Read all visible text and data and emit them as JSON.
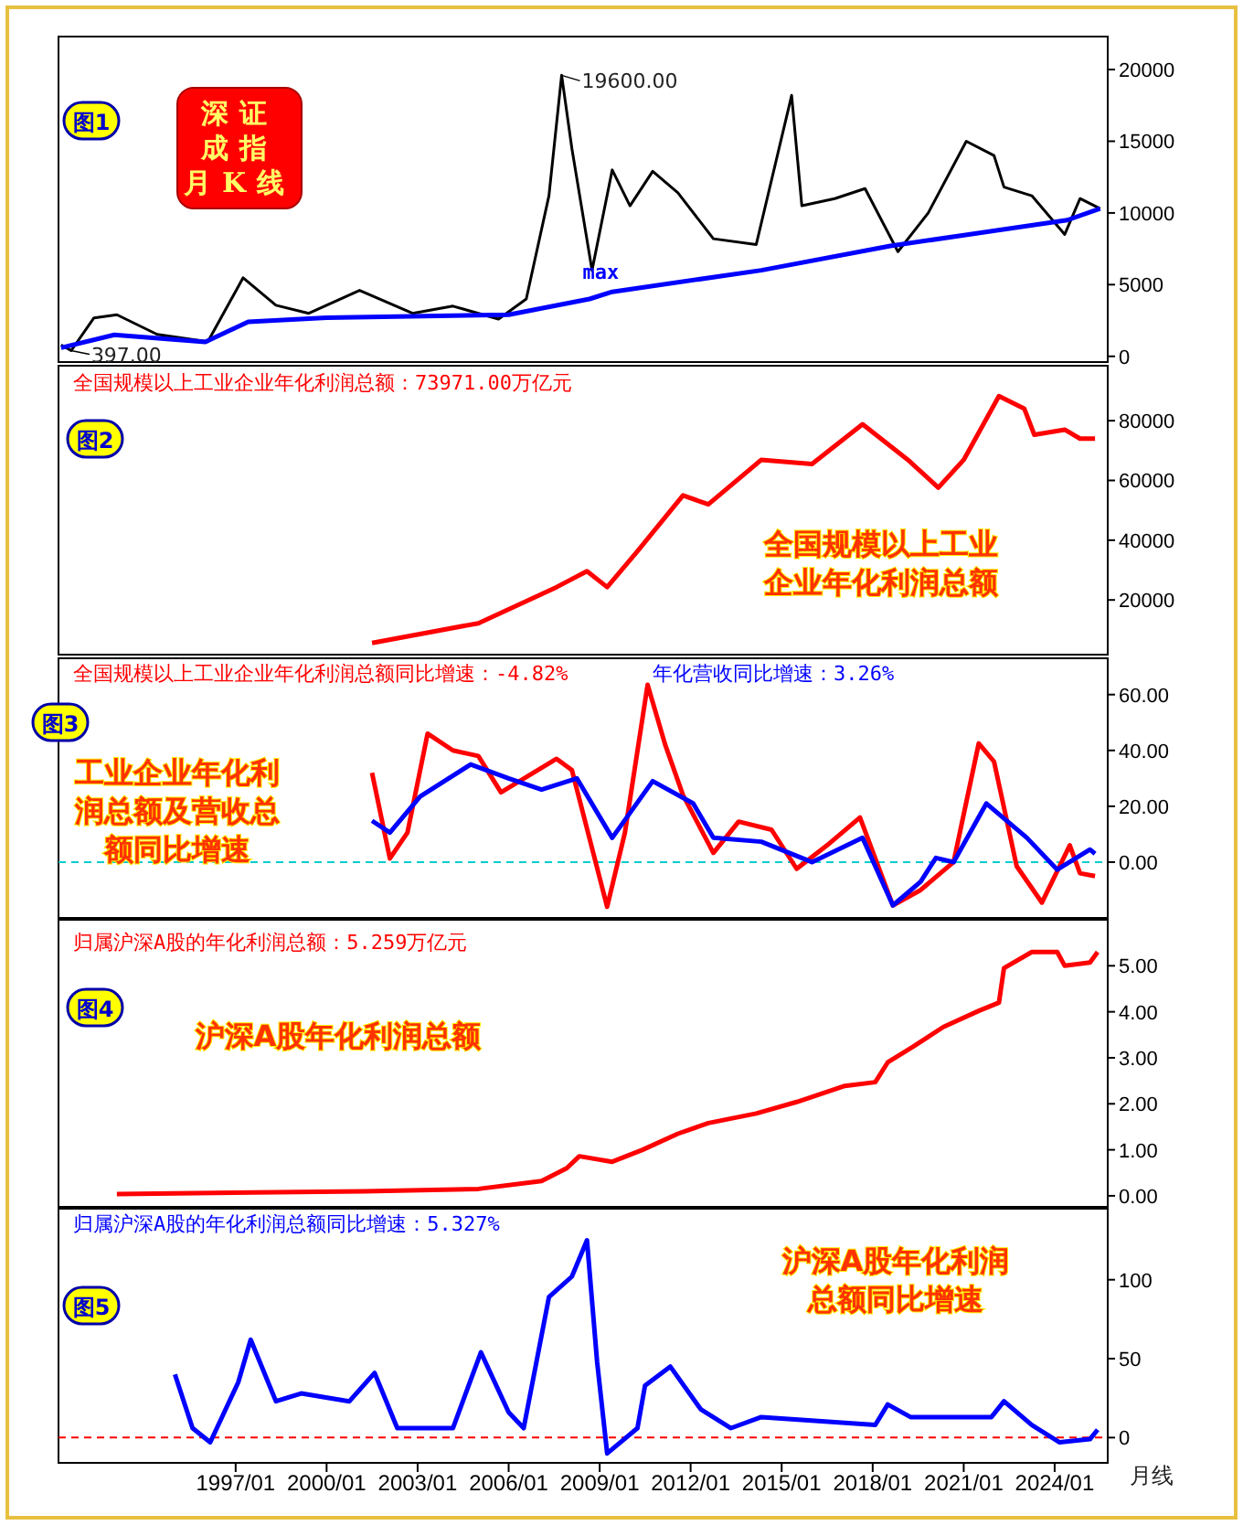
{
  "chart_data": [
    {
      "type": "line",
      "title": "深证成指月K线",
      "xlim": [
        "1991-03",
        "2025-10"
      ],
      "ylim": [
        -400,
        22300
      ],
      "yticks": [
        0,
        5000,
        10000,
        15000,
        20000
      ],
      "tick_labels": "y",
      "legend": false,
      "annotations": [
        "图1",
        {
          "text": "19600.00",
          "x": "2007-10",
          "y": 19600
        },
        {
          "text": "397.00",
          "x": "1991-08",
          "y": 397
        }
      ],
      "series": [
        {
          "color": "#000000",
          "x": [
            "1991-04",
            "1991-08",
            "1992-05",
            "1993-02",
            "1994-06",
            "1996-02",
            "1997-04",
            "1998-05",
            "1999-06",
            "2001-02",
            "2002-11",
            "2004-03",
            "2005-09",
            "2006-08",
            "2007-05",
            "2007-10",
            "2008-02",
            "2008-10",
            "2009-06",
            "2010-01",
            "2010-10",
            "2011-08",
            "2012-10",
            "2014-03",
            "2015-05",
            "2015-09",
            "2016-10",
            "2017-10",
            "2018-11",
            "2019-11",
            "2021-02",
            "2022-01",
            "2022-05",
            "2023-04",
            "2024-05",
            "2024-11",
            "2025-07"
          ],
          "values": [
            800,
            397,
            2680,
            2900,
            1530,
            1020,
            5480,
            3560,
            3000,
            4600,
            3000,
            3500,
            2600,
            4000,
            11200,
            19600,
            14500,
            6000,
            13000,
            10500,
            12900,
            11400,
            8200,
            7800,
            18200,
            10500,
            11000,
            11700,
            7300,
            10000,
            15000,
            14000,
            11800,
            11200,
            8500,
            11000,
            10300
          ]
        },
        {
          "name": "max",
          "color": "#0000ff",
          "x": [
            "1991-04",
            "1993-01",
            "1996-01",
            "1997-06",
            "2000-01",
            "2006-01",
            "2008-09",
            "2009-06",
            "2014-05",
            "2018-08",
            "2024-06",
            "2025-07"
          ],
          "values": [
            600,
            1500,
            1000,
            2400,
            2700,
            2900,
            4000,
            4500,
            6000,
            7700,
            9500,
            10300
          ]
        }
      ]
    },
    {
      "type": "line",
      "title": "全国规模以上工业企业年化利润总额：73971.00万亿元",
      "xlim": [
        "1991-03",
        "2025-10"
      ],
      "ylim": [
        1700,
        98400
      ],
      "yticks": [
        20000,
        40000,
        60000,
        80000
      ],
      "tick_labels": "y",
      "legend": false,
      "annotations": [
        "图2",
        "全国规模以上工业企业年化利润总额"
      ],
      "series": [
        {
          "color": "#ff0000",
          "x": [
            "2001-07",
            "2005-01",
            "2007-08",
            "2008-08",
            "2009-04",
            "2010-04",
            "2011-10",
            "2012-08",
            "2014-05",
            "2016-01",
            "2017-09",
            "2019-03",
            "2020-03",
            "2021-01",
            "2022-03",
            "2023-01",
            "2023-05",
            "2024-05",
            "2024-11",
            "2025-05"
          ],
          "values": [
            5600,
            12200,
            24300,
            29600,
            24300,
            36300,
            55000,
            52000,
            66900,
            65500,
            78800,
            66900,
            57600,
            66900,
            88200,
            84000,
            75300,
            77000,
            74000,
            74000
          ]
        }
      ]
    },
    {
      "type": "line",
      "xlim": [
        "1991-03",
        "2025-10"
      ],
      "ylim": [
        -20,
        73
      ],
      "yticks": [
        {
          "value": 0,
          "label": "0.00"
        },
        {
          "value": 20,
          "label": "20.00"
        },
        {
          "value": 40,
          "label": "40.00"
        },
        {
          "value": 60,
          "label": "60.00"
        }
      ],
      "tick_labels": "y",
      "legend": "top left",
      "annotations": [
        "图3",
        "工业企业年化利润总额及营收总额同比增速"
      ],
      "ref_lines": [
        {
          "axis": "y",
          "value": 0,
          "color": "#00cccc",
          "line_style": "dashed"
        }
      ],
      "series": [
        {
          "name": "全国规模以上工业企业年化利润总额同比增速：-4.82%",
          "color": "#ff0000",
          "x": [
            "2001-07",
            "2002-02",
            "2002-09",
            "2003-05",
            "2004-03",
            "2005-01",
            "2005-10",
            "2007-08",
            "2008-02",
            "2009-04",
            "2009-11",
            "2010-08",
            "2011-03",
            "2011-10",
            "2012-10",
            "2013-08",
            "2014-09",
            "2015-07",
            "2016-07",
            "2017-08",
            "2018-09",
            "2019-08",
            "2020-09",
            "2021-07",
            "2022-01",
            "2022-10",
            "2023-08",
            "2024-07",
            "2024-11",
            "2025-05"
          ],
          "values": [
            32,
            1.3,
            10.6,
            46,
            40,
            38,
            25,
            37,
            33,
            -16,
            10.6,
            63.5,
            42,
            24,
            3.3,
            14.5,
            11.6,
            -2.4,
            6,
            16,
            -15.5,
            -10,
            0,
            42.5,
            36,
            -1.5,
            -14.5,
            6,
            -4,
            -5
          ]
        },
        {
          "name": "年化营收同比增速：3.26%",
          "color": "#0000ff",
          "x": [
            "2001-07",
            "2002-02",
            "2003-02",
            "2004-10",
            "2006-01",
            "2007-02",
            "2008-04",
            "2009-06",
            "2010-10",
            "2012-02",
            "2012-10",
            "2014-05",
            "2016-01",
            "2017-09",
            "2018-09",
            "2019-08",
            "2020-02",
            "2020-09",
            "2021-10",
            "2023-02",
            "2024-02",
            "2025-03",
            "2025-05"
          ],
          "values": [
            14.8,
            10.6,
            23.5,
            35,
            30,
            26,
            30,
            8.7,
            29,
            21,
            8.7,
            7.3,
            0,
            8.7,
            -15.5,
            -7,
            1.5,
            0,
            21,
            8.7,
            -2.7,
            4.5,
            3
          ]
        }
      ]
    },
    {
      "type": "line",
      "title": "归属沪深A股的年化利润总额：5.259万亿元",
      "xlim": [
        "1991-03",
        "2025-10"
      ],
      "ylim": [
        -0.24,
        6.0
      ],
      "yticks": [
        {
          "value": 0,
          "label": "0.00"
        },
        {
          "value": 1,
          "label": "1.00"
        },
        {
          "value": 2,
          "label": "2.00"
        },
        {
          "value": 3,
          "label": "3.00"
        },
        {
          "value": 4,
          "label": "4.00"
        },
        {
          "value": 5,
          "label": "5.00"
        }
      ],
      "tick_labels": "y",
      "legend": false,
      "annotations": [
        "图4",
        "沪深A股年化利润总额"
      ],
      "series": [
        {
          "color": "#ff0000",
          "x": [
            "1993-02",
            "2001-04",
            "2005-01",
            "2007-02",
            "2007-12",
            "2008-05",
            "2009-06",
            "2010-06",
            "2011-08",
            "2012-08",
            "2014-03",
            "2015-07",
            "2017-02",
            "2018-02",
            "2018-07",
            "2019-05",
            "2020-05",
            "2021-07",
            "2022-03",
            "2022-05",
            "2023-04",
            "2024-02",
            "2024-05",
            "2025-03",
            "2025-06"
          ],
          "values": [
            0.04,
            0.1,
            0.15,
            0.32,
            0.6,
            0.86,
            0.74,
            1.0,
            1.35,
            1.58,
            1.79,
            2.04,
            2.39,
            2.47,
            2.9,
            3.24,
            3.67,
            4.02,
            4.2,
            4.95,
            5.3,
            5.3,
            5.0,
            5.07,
            5.3
          ]
        }
      ]
    },
    {
      "type": "line",
      "title": "归属沪深A股的年化利润总额同比增速：5.327%",
      "xlim": [
        "1991-03",
        "2025-10"
      ],
      "ylim": [
        -16,
        145
      ],
      "yticks": [
        0,
        50,
        100
      ],
      "xticks": [
        {
          "value": "1997-01",
          "label": "1997/01"
        },
        {
          "value": "2000-01",
          "label": "2000/01"
        },
        {
          "value": "2003-01",
          "label": "2003/01"
        },
        {
          "value": "2006-01",
          "label": "2006/01"
        },
        {
          "value": "2009-01",
          "label": "2009/01"
        },
        {
          "value": "2012-01",
          "label": "2012/01"
        },
        {
          "value": "2015-01",
          "label": "2015/01"
        },
        {
          "value": "2018-01",
          "label": "2018/01"
        },
        {
          "value": "2021-01",
          "label": "2021/01"
        },
        {
          "value": "2024-01",
          "label": "2024/01"
        }
      ],
      "legend": false,
      "annotations": [
        "图5",
        "沪深A股年化利润总额同比增速",
        "月线"
      ],
      "ref_lines": [
        {
          "axis": "y",
          "value": 0,
          "color": "#ff0000",
          "line_style": "dashed"
        }
      ],
      "series": [
        {
          "color": "#0000ff",
          "x": [
            "1995-01",
            "1995-08",
            "1996-03",
            "1997-02",
            "1997-07",
            "1998-05",
            "1999-03",
            "2000-10",
            "2001-08",
            "2002-05",
            "2004-03",
            "2005-02",
            "2006-01",
            "2006-07",
            "2007-05",
            "2008-02",
            "2008-08",
            "2008-12",
            "2009-04",
            "2010-04",
            "2010-07",
            "2011-05",
            "2012-05",
            "2013-05",
            "2014-05",
            "2018-02",
            "2018-07",
            "2019-04",
            "2021-12",
            "2022-05",
            "2023-04",
            "2024-03",
            "2025-03",
            "2025-06"
          ],
          "values": [
            40,
            6,
            -3,
            35,
            62,
            23,
            28,
            23,
            41,
            6,
            6,
            54,
            16,
            6,
            89,
            102,
            125,
            48,
            -10,
            6,
            33,
            45,
            18,
            6,
            13,
            8,
            21,
            13,
            13,
            23,
            8,
            -3,
            -1,
            5
          ]
        }
      ]
    }
  ]
}
